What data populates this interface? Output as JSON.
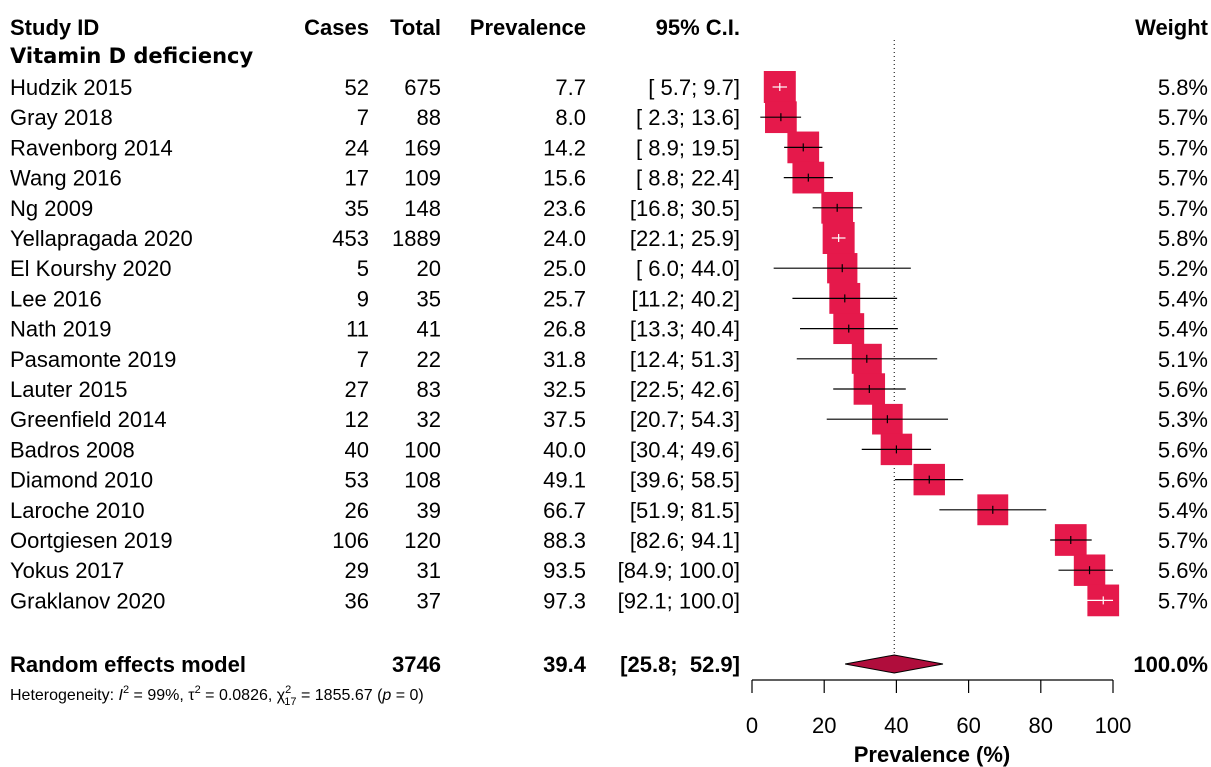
{
  "headers": {
    "study": "Study ID",
    "cases": "Cases",
    "total": "Total",
    "prevalence": "Prevalence",
    "ci": "95% C.I.",
    "weight": "Weight"
  },
  "subgroup": "Vitamin D deficiency",
  "pooled": {
    "label": "Random effects model",
    "total": "3746",
    "prevalence": "39.4",
    "ci": "[25.8;  52.9]",
    "weight": "100.0%"
  },
  "heterogeneity": {
    "prefix": "Heterogeneity: ",
    "i2_sym": "I",
    "i2_val": " = 99%, ",
    "tau_sym": "τ",
    "tau_val": " = 0.0826, ",
    "chi_sym": "χ",
    "chi_df": "17",
    "chi_val": " = 1855.67 (",
    "p_sym": "p",
    "p_val": " = 0)"
  },
  "colors": {
    "box": "#e5194b",
    "diamond": "#b00d3c",
    "line": "#000000"
  },
  "chart_data": {
    "type": "forest",
    "xlabel": "Prevalence (%)",
    "xlim": [
      0,
      100
    ],
    "ticks": [
      0,
      20,
      40,
      60,
      80,
      100
    ],
    "reference_line": 39.4,
    "studies": [
      {
        "study": "Hudzik 2015",
        "cases": "52",
        "total": "675",
        "prev": 7.7,
        "lo": 5.7,
        "hi": 9.7,
        "ci": "[ 5.7;   9.7]",
        "weight": 5.8
      },
      {
        "study": "Gray 2018",
        "cases": "7",
        "total": "88",
        "prev": 8.0,
        "lo": 2.3,
        "hi": 13.6,
        "ci": "[ 2.3;  13.6]",
        "weight": 5.7
      },
      {
        "study": "Ravenborg 2014",
        "cases": "24",
        "total": "169",
        "prev": 14.2,
        "lo": 8.9,
        "hi": 19.5,
        "ci": "[ 8.9;  19.5]",
        "weight": 5.7
      },
      {
        "study": "Wang 2016",
        "cases": "17",
        "total": "109",
        "prev": 15.6,
        "lo": 8.8,
        "hi": 22.4,
        "ci": "[ 8.8;  22.4]",
        "weight": 5.7
      },
      {
        "study": "Ng 2009",
        "cases": "35",
        "total": "148",
        "prev": 23.6,
        "lo": 16.8,
        "hi": 30.5,
        "ci": "[16.8;  30.5]",
        "weight": 5.7
      },
      {
        "study": "Yellapragada 2020",
        "cases": "453",
        "total": "1889",
        "prev": 24.0,
        "lo": 22.1,
        "hi": 25.9,
        "ci": "[22.1;  25.9]",
        "weight": 5.8
      },
      {
        "study": "El Kourshy 2020",
        "cases": "5",
        "total": "20",
        "prev": 25.0,
        "lo": 6.0,
        "hi": 44.0,
        "ci": "[ 6.0;  44.0]",
        "weight": 5.2
      },
      {
        "study": "Lee 2016",
        "cases": "9",
        "total": "35",
        "prev": 25.7,
        "lo": 11.2,
        "hi": 40.2,
        "ci": "[11.2;  40.2]",
        "weight": 5.4
      },
      {
        "study": "Nath 2019",
        "cases": "11",
        "total": "41",
        "prev": 26.8,
        "lo": 13.3,
        "hi": 40.4,
        "ci": "[13.3;  40.4]",
        "weight": 5.4
      },
      {
        "study": "Pasamonte 2019",
        "cases": "7",
        "total": "22",
        "prev": 31.8,
        "lo": 12.4,
        "hi": 51.3,
        "ci": "[12.4;  51.3]",
        "weight": 5.1
      },
      {
        "study": "Lauter 2015",
        "cases": "27",
        "total": "83",
        "prev": 32.5,
        "lo": 22.5,
        "hi": 42.6,
        "ci": "[22.5;  42.6]",
        "weight": 5.6
      },
      {
        "study": "Greenfield 2014",
        "cases": "12",
        "total": "32",
        "prev": 37.5,
        "lo": 20.7,
        "hi": 54.3,
        "ci": "[20.7;  54.3]",
        "weight": 5.3
      },
      {
        "study": "Badros 2008",
        "cases": "40",
        "total": "100",
        "prev": 40.0,
        "lo": 30.4,
        "hi": 49.6,
        "ci": "[30.4;  49.6]",
        "weight": 5.6
      },
      {
        "study": "Diamond 2010",
        "cases": "53",
        "total": "108",
        "prev": 49.1,
        "lo": 39.6,
        "hi": 58.5,
        "ci": "[39.6;  58.5]",
        "weight": 5.6
      },
      {
        "study": "Laroche 2010",
        "cases": "26",
        "total": "39",
        "prev": 66.7,
        "lo": 51.9,
        "hi": 81.5,
        "ci": "[51.9;  81.5]",
        "weight": 5.4
      },
      {
        "study": "Oortgiesen 2019",
        "cases": "106",
        "total": "120",
        "prev": 88.3,
        "lo": 82.6,
        "hi": 94.1,
        "ci": "[82.6;  94.1]",
        "weight": 5.7
      },
      {
        "study": "Yokus 2017",
        "cases": "29",
        "total": "31",
        "prev": 93.5,
        "lo": 84.9,
        "hi": 100.0,
        "ci": "[84.9; 100.0]",
        "weight": 5.6
      },
      {
        "study": "Graklanov 2020",
        "cases": "36",
        "total": "37",
        "prev": 97.3,
        "lo": 92.1,
        "hi": 100.0,
        "ci": "[92.1; 100.0]",
        "weight": 5.7
      }
    ],
    "pooled": {
      "prev": 39.4,
      "lo": 25.8,
      "hi": 52.9
    }
  }
}
